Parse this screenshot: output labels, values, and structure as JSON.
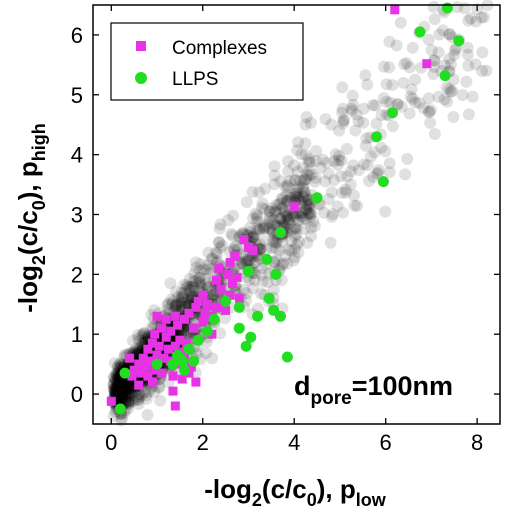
{
  "chart_data": {
    "type": "scatter",
    "title": "",
    "xlabel": {
      "main": "-log",
      "sub1": "2",
      "mid": "(c/c",
      "sub2": "0",
      "end": "), p",
      "sub3": "low"
    },
    "ylabel": {
      "main": "-log",
      "sub1": "2",
      "mid": "(c/c",
      "sub2": "0",
      "end": "), p",
      "sub3": "high"
    },
    "xlim": [
      -0.4,
      8.5
    ],
    "ylim": [
      -0.5,
      6.5
    ],
    "xticks": [
      0,
      2,
      4,
      6,
      8
    ],
    "yticks": [
      0,
      1,
      2,
      3,
      4,
      5,
      6
    ],
    "grid": false,
    "legend": {
      "position": "top-left"
    },
    "annotation": {
      "main": "d",
      "sub": "pore",
      "rest": "=100nm"
    },
    "background_series": {
      "color": "#000000",
      "opacity": 0.12,
      "count": 1700
    },
    "series": [
      {
        "name": "Complexes",
        "marker": "square",
        "color": "#e633e6",
        "points": [
          [
            6.2,
            6.42
          ],
          [
            6.9,
            5.52
          ],
          [
            4.0,
            3.13
          ],
          [
            2.9,
            2.58
          ],
          [
            3.0,
            2.45
          ],
          [
            3.1,
            2.4
          ],
          [
            2.7,
            2.3
          ],
          [
            2.6,
            2.2
          ],
          [
            2.35,
            2.1
          ],
          [
            2.55,
            2.0
          ],
          [
            2.75,
            1.95
          ],
          [
            2.3,
            1.9
          ],
          [
            2.4,
            1.75
          ],
          [
            2.6,
            1.65
          ],
          [
            2.8,
            1.6
          ],
          [
            2.0,
            1.65
          ],
          [
            1.9,
            1.55
          ],
          [
            2.1,
            1.5
          ],
          [
            2.3,
            1.45
          ],
          [
            2.5,
            1.4
          ],
          [
            2.2,
            1.3
          ],
          [
            2.0,
            1.2
          ],
          [
            1.8,
            1.1
          ],
          [
            1.6,
            1.25
          ],
          [
            1.4,
            1.3
          ],
          [
            1.2,
            1.25
          ],
          [
            1.45,
            1.15
          ],
          [
            1.3,
            1.05
          ],
          [
            1.1,
            1.1
          ],
          [
            0.95,
            1.0
          ],
          [
            1.2,
            0.95
          ],
          [
            1.5,
            0.9
          ],
          [
            1.65,
            0.85
          ],
          [
            1.4,
            0.8
          ],
          [
            1.25,
            0.75
          ],
          [
            1.05,
            0.8
          ],
          [
            0.9,
            0.85
          ],
          [
            0.8,
            0.75
          ],
          [
            1.0,
            0.65
          ],
          [
            1.15,
            0.6
          ],
          [
            1.3,
            0.55
          ],
          [
            1.5,
            0.5
          ],
          [
            1.75,
            0.45
          ],
          [
            1.6,
            0.6
          ],
          [
            0.85,
            0.55
          ],
          [
            0.7,
            0.6
          ],
          [
            0.6,
            0.5
          ],
          [
            0.75,
            0.45
          ],
          [
            0.95,
            0.4
          ],
          [
            1.1,
            0.35
          ],
          [
            1.35,
            0.3
          ],
          [
            0.65,
            0.35
          ],
          [
            0.5,
            0.4
          ],
          [
            0.45,
            0.3
          ],
          [
            0.8,
            0.3
          ],
          [
            1.7,
            0.35
          ],
          [
            1.55,
            0.25
          ],
          [
            0.9,
            0.2
          ],
          [
            0.6,
            0.15
          ],
          [
            1.85,
            0.2
          ],
          [
            2.05,
            1.35
          ],
          [
            1.85,
            1.45
          ],
          [
            2.45,
            1.55
          ],
          [
            2.65,
            1.85
          ],
          [
            1.7,
            1.35
          ],
          [
            0.4,
            0.6
          ],
          [
            1.35,
            0.05
          ],
          [
            1.4,
            -0.2
          ],
          [
            0.0,
            -0.12
          ],
          [
            2.2,
            1.0
          ],
          [
            1.0,
            1.3
          ],
          [
            1.6,
            0.7
          ]
        ]
      },
      {
        "name": "LLPS",
        "marker": "circle",
        "color": "#22dd22",
        "points": [
          [
            7.35,
            6.45
          ],
          [
            6.75,
            6.05
          ],
          [
            7.6,
            5.9
          ],
          [
            7.3,
            5.32
          ],
          [
            6.15,
            4.7
          ],
          [
            5.8,
            4.3
          ],
          [
            5.95,
            3.55
          ],
          [
            4.5,
            3.28
          ],
          [
            3.7,
            2.7
          ],
          [
            3.4,
            2.25
          ],
          [
            3.0,
            2.05
          ],
          [
            3.6,
            2.0
          ],
          [
            3.45,
            1.6
          ],
          [
            2.5,
            1.55
          ],
          [
            2.8,
            1.45
          ],
          [
            3.55,
            1.4
          ],
          [
            3.2,
            1.3
          ],
          [
            2.25,
            1.25
          ],
          [
            3.7,
            1.3
          ],
          [
            2.8,
            1.1
          ],
          [
            2.1,
            1.05
          ],
          [
            3.05,
            0.95
          ],
          [
            1.9,
            0.9
          ],
          [
            1.7,
            0.75
          ],
          [
            1.5,
            0.6
          ],
          [
            1.35,
            0.5
          ],
          [
            1.8,
            0.55
          ],
          [
            1.6,
            0.4
          ],
          [
            1.55,
            0.55
          ],
          [
            1.0,
            0.5
          ],
          [
            1.45,
            0.65
          ],
          [
            3.85,
            0.62
          ],
          [
            0.3,
            0.35
          ],
          [
            0.2,
            -0.25
          ],
          [
            2.95,
            0.8
          ]
        ]
      }
    ]
  }
}
